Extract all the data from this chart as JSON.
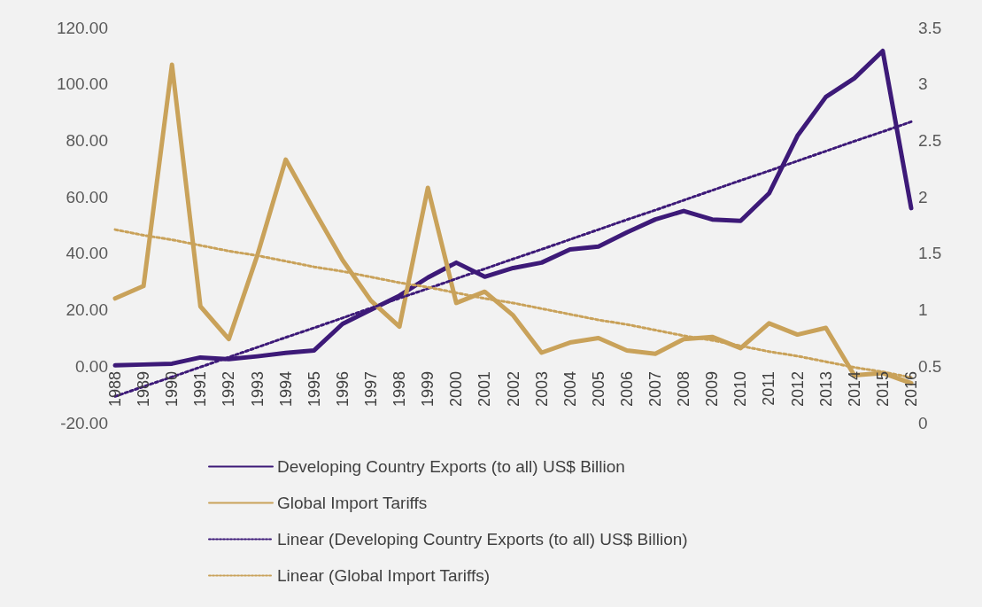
{
  "chart_data": {
    "type": "line",
    "categories": [
      "1988",
      "1989",
      "1990",
      "1991",
      "1992",
      "1993",
      "1994",
      "1995",
      "1996",
      "1997",
      "1998",
      "1999",
      "2000",
      "2001",
      "2002",
      "2003",
      "2004",
      "2005",
      "2006",
      "2007",
      "2008",
      "2009",
      "2010",
      "2011",
      "2012",
      "2013",
      "2014",
      "2015",
      "2016"
    ],
    "series": [
      {
        "name": "Developing Country Exports (to all) US$ Billion",
        "color": "#3d1a78",
        "line_style": "solid",
        "values": [
          0.3,
          0.6,
          0.9,
          3.1,
          2.5,
          3.5,
          4.7,
          5.6,
          15,
          20,
          25,
          31.4,
          36.7,
          31.7,
          34.8,
          36.7,
          41.4,
          42.4,
          47.4,
          52,
          55,
          52,
          51.5,
          61.2,
          81.6,
          95.4,
          102,
          111.7,
          56
        ]
      },
      {
        "name": "Global Import Tariffs",
        "color": "#c9a25a",
        "axis": "y2",
        "line_style": "solid",
        "values": [
          1.1,
          1.21,
          3.17,
          1.03,
          0.74,
          1.48,
          2.33,
          1.88,
          1.44,
          1.08,
          0.85,
          2.08,
          1.06,
          1.16,
          0.95,
          0.62,
          0.71,
          0.75,
          0.64,
          0.61,
          0.74,
          0.76,
          0.66,
          0.88,
          0.78,
          0.84,
          0.42,
          0.44,
          0.35
        ]
      },
      {
        "name": "Linear (Developing Country Exports (to all) US$ Billion)",
        "color": "#3d1a78",
        "line_style": "dotted",
        "values": [
          -10.7,
          -7.2,
          -3.8,
          -0.3,
          3.2,
          6.7,
          10.2,
          13.6,
          17.1,
          20.6,
          24.1,
          27.5,
          31.0,
          34.5,
          38.0,
          41.4,
          44.9,
          48.4,
          51.9,
          55.3,
          58.8,
          62.3,
          65.8,
          69.2,
          72.7,
          76.2,
          79.7,
          83.1,
          86.6
        ]
      },
      {
        "name": "Linear (Global Import Tariffs)",
        "color": "#c9a25a",
        "axis": "y2",
        "line_style": "dotted",
        "values": [
          1.71,
          1.66,
          1.62,
          1.57,
          1.52,
          1.48,
          1.43,
          1.38,
          1.34,
          1.29,
          1.24,
          1.2,
          1.15,
          1.1,
          1.06,
          1.01,
          0.96,
          0.91,
          0.87,
          0.82,
          0.77,
          0.73,
          0.68,
          0.63,
          0.59,
          0.54,
          0.49,
          0.45,
          0.4
        ]
      }
    ],
    "ylim": [
      -20,
      120
    ],
    "yticks": [
      {
        "value": -20,
        "label": "-20.00"
      },
      {
        "value": 0,
        "label": "0.00"
      },
      {
        "value": 20,
        "label": "20.00"
      },
      {
        "value": 40,
        "label": "40.00"
      },
      {
        "value": 60,
        "label": "60.00"
      },
      {
        "value": 80,
        "label": "80.00"
      },
      {
        "value": 100,
        "label": "100.00"
      },
      {
        "value": 120,
        "label": "120.00"
      }
    ],
    "y2lim": [
      0,
      3.5
    ],
    "y2ticks": [
      0,
      0.5,
      1,
      1.5,
      2,
      2.5,
      3,
      3.5
    ],
    "grid": false,
    "legend": "bottom",
    "marker": "none"
  }
}
